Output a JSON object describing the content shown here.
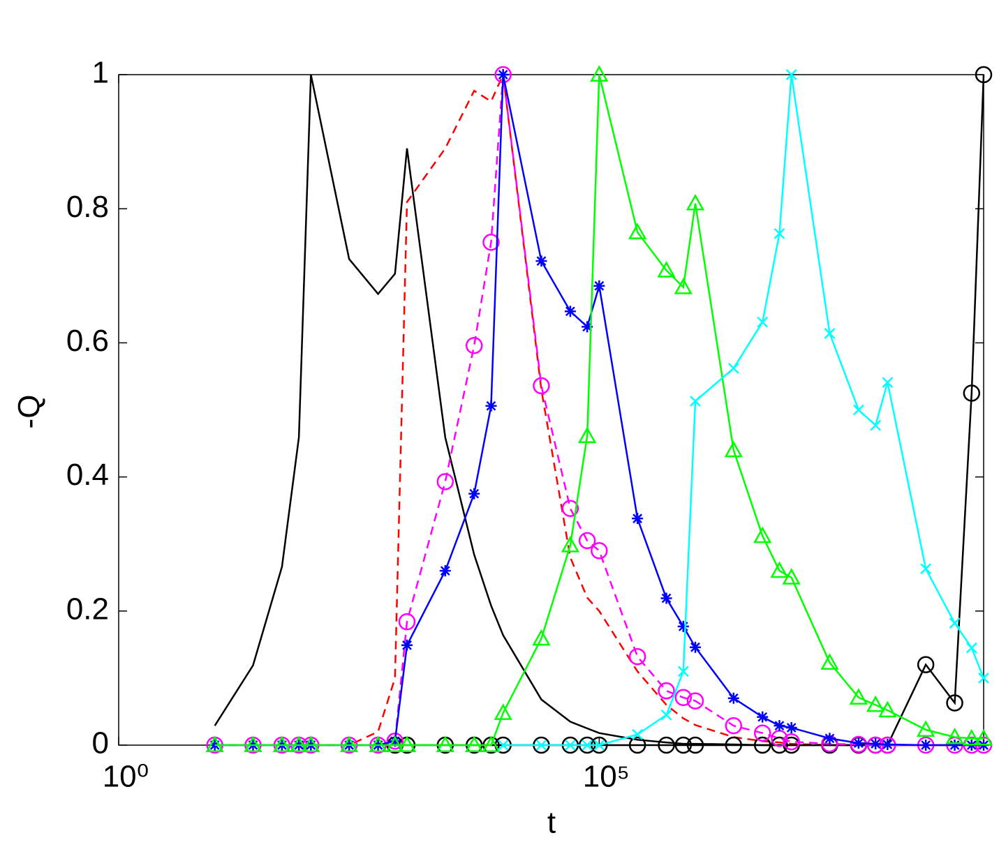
{
  "chart_data": {
    "type": "line",
    "x_label": "t",
    "y_label": "-Q",
    "xscale": "log",
    "xlim": [
      1,
      1000000000
    ],
    "ylim": [
      0,
      1
    ],
    "xticks": [
      {
        "value": 1,
        "label": "10⁰"
      },
      {
        "value": 100000,
        "label": "10⁵"
      }
    ],
    "yticks": [
      0,
      0.2,
      0.4,
      0.6,
      0.8,
      1
    ],
    "grid": false,
    "x": [
      10,
      25,
      50,
      75,
      100,
      250,
      500,
      750,
      1000,
      2500,
      5000,
      7500,
      10000,
      25000,
      50000,
      75000,
      100000,
      250000,
      500000,
      750000,
      1000000,
      2500000,
      5000000,
      7500000,
      10000000,
      25000000,
      50000000,
      75000000,
      100000000,
      250000000,
      500000000,
      750000000,
      1000000000
    ],
    "series": [
      {
        "color": "#000000",
        "linestyle": "solid",
        "marker": "none",
        "values": [
          0.029,
          0.119,
          0.266,
          0.459,
          1,
          0.725,
          0.673,
          0.703,
          0.89,
          0.459,
          0.284,
          0.208,
          0.164,
          0.068,
          0.035,
          0.025,
          0.018,
          0.008,
          0.004,
          0.002,
          0.002,
          0.001,
          0,
          0,
          0,
          0,
          0,
          0,
          0,
          0,
          0,
          0,
          0
        ]
      },
      {
        "color": "#ff0000",
        "linestyle": "dashed",
        "marker": "none",
        "values": [
          0,
          0,
          0,
          0,
          0,
          0,
          0.02,
          0.1,
          0.81,
          0.89,
          0.976,
          0.96,
          1,
          0.53,
          0.28,
          0.22,
          0.2,
          0.11,
          0.06,
          0.04,
          0.03,
          0.012,
          0.006,
          0.004,
          0.002,
          0,
          0,
          0,
          0,
          0,
          0,
          0,
          0
        ]
      },
      {
        "color": "#000000",
        "linestyle": "solid",
        "marker": "circle",
        "values": [
          null,
          null,
          null,
          null,
          null,
          null,
          null,
          0,
          0,
          0,
          0,
          0,
          0,
          0,
          0,
          0,
          0,
          0,
          0,
          0,
          0,
          0,
          0,
          0,
          0,
          0,
          0,
          0,
          0,
          0.12,
          0.063,
          0.525,
          1
        ]
      },
      {
        "color": "#ff00ff",
        "linestyle": "dashed",
        "marker": "circle",
        "values": [
          0,
          0,
          0,
          0,
          0,
          0,
          0,
          0.006,
          0.184,
          0.393,
          0.596,
          0.75,
          1,
          0.536,
          0.353,
          0.305,
          0.29,
          0.132,
          0.081,
          0.071,
          0.066,
          0.029,
          0.018,
          0.01,
          0.005,
          0.002,
          0.001,
          0,
          0,
          0,
          0,
          0,
          0
        ]
      },
      {
        "color": "#0000ff",
        "linestyle": "solid",
        "marker": "star",
        "values": [
          0,
          0,
          0,
          0,
          0,
          0,
          0,
          0.006,
          0.149,
          0.26,
          0.375,
          0.506,
          1,
          0.722,
          0.647,
          0.624,
          0.685,
          0.338,
          0.219,
          0.177,
          0.146,
          0.07,
          0.042,
          0.029,
          0.026,
          0.01,
          0.003,
          0.002,
          0.001,
          0,
          0,
          0,
          0
        ]
      },
      {
        "color": "#00ff00",
        "linestyle": "solid",
        "marker": "triangle",
        "values": [
          0,
          0,
          0,
          0,
          0,
          0,
          0,
          0,
          0,
          0,
          0,
          0,
          0.048,
          0.159,
          0.298,
          0.461,
          1,
          0.765,
          0.708,
          0.683,
          0.808,
          0.44,
          0.312,
          0.26,
          0.25,
          0.123,
          0.071,
          0.06,
          0.052,
          0.023,
          0.012,
          0.01,
          0.01
        ]
      },
      {
        "color": "#00ffff",
        "linestyle": "solid",
        "marker": "x",
        "values": [
          null,
          null,
          null,
          null,
          null,
          null,
          null,
          null,
          null,
          null,
          null,
          null,
          0,
          0,
          0,
          0,
          0,
          0.016,
          0.045,
          0.11,
          0.513,
          0.562,
          0.631,
          0.763,
          1,
          0.614,
          0.5,
          0.477,
          0.541,
          0.263,
          0.182,
          0.145,
          0.1
        ]
      }
    ]
  }
}
